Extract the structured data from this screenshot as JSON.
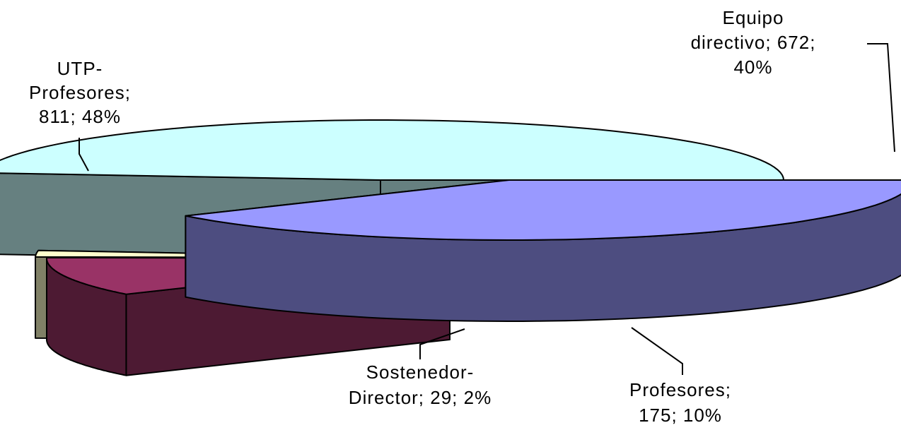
{
  "chart_data": {
    "type": "pie",
    "title": "",
    "slices": [
      {
        "key": "equipo",
        "label": "Equipo directivo",
        "value": 672,
        "percent": 40,
        "label_lines": [
          "Equipo",
          "directivo; 672;",
          "40%"
        ],
        "top_color": "#9999FF",
        "side_color": "#4D4D80"
      },
      {
        "key": "profesores",
        "label": "Profesores",
        "value": 175,
        "percent": 10,
        "label_lines": [
          "Profesores;",
          "175; 10%"
        ],
        "top_color": "#993366",
        "side_color": "#4D1A33"
      },
      {
        "key": "sostenedor",
        "label": "Sostenedor-Director",
        "value": 29,
        "percent": 2,
        "label_lines": [
          "Sostenedor-",
          "Director; 29; 2%"
        ],
        "top_color": "#FFFFCC",
        "side_color": "#808066"
      },
      {
        "key": "utp",
        "label": "UTP-Profesores",
        "value": 811,
        "percent": 48,
        "label_lines": [
          "UTP-",
          "Profesores;",
          "811; 48%"
        ],
        "top_color": "#CCFFFF",
        "side_color": "#668080"
      }
    ]
  }
}
